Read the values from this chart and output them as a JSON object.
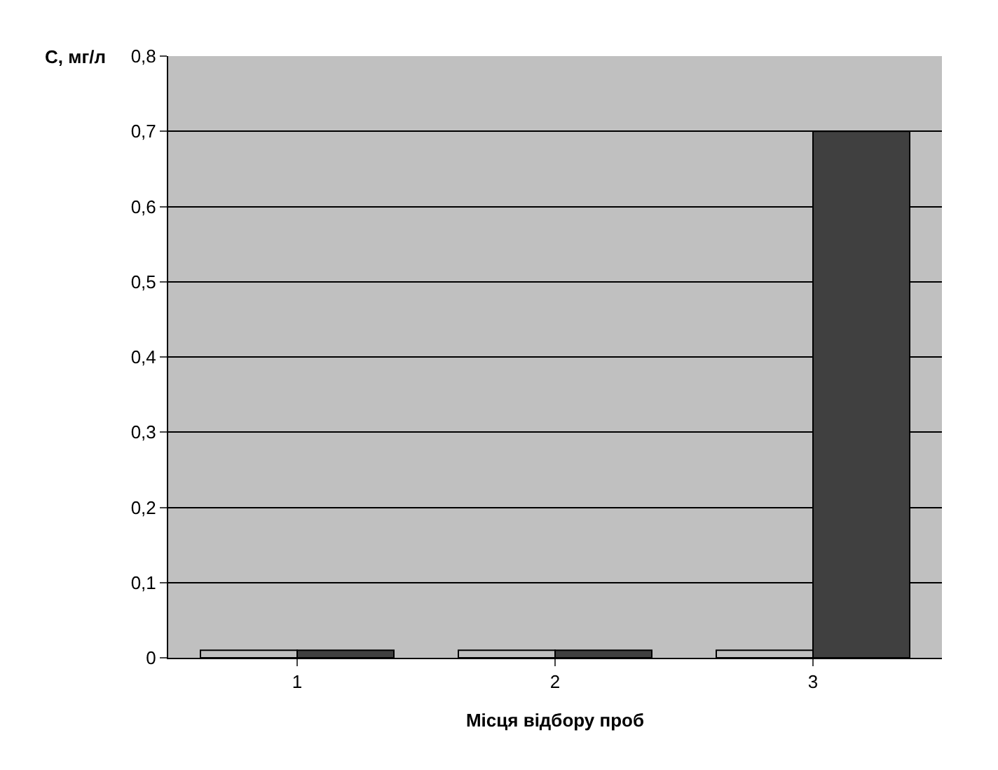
{
  "chart_data": {
    "type": "bar",
    "ylabel": "С, мг/л",
    "xlabel": "Місця відбору проб",
    "categories": [
      "1",
      "2",
      "3"
    ],
    "series": [
      {
        "color": "#c0c0c0",
        "values": [
          0.01,
          0.01,
          0.01
        ]
      },
      {
        "color": "#404040",
        "values": [
          0.01,
          0.01,
          0.7
        ]
      }
    ],
    "ylim": [
      0,
      0.8
    ],
    "yticks": [
      0,
      {
        "value": 0.1,
        "label": "0,1"
      },
      {
        "value": 0.2,
        "label": "0,2"
      },
      {
        "value": 0.3,
        "label": "0,3"
      },
      {
        "value": 0.4,
        "label": "0,4"
      },
      {
        "value": 0.5,
        "label": "0,5"
      },
      {
        "value": 0.6,
        "label": "0,6"
      },
      {
        "value": 0.7,
        "label": "0,7"
      },
      {
        "value": 0.8,
        "label": "0,8"
      }
    ],
    "grid": "y"
  }
}
